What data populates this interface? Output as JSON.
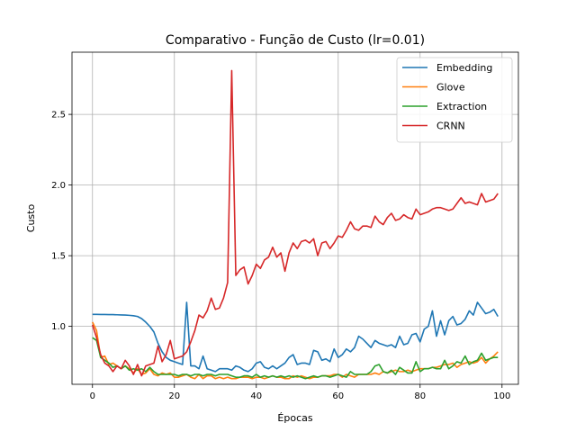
{
  "chart_data": {
    "type": "line",
    "title": "Comparativo - Função de Custo (lr=0.01)",
    "xlabel": "Épocas",
    "ylabel": "Custo",
    "xlim": [
      -5,
      104
    ],
    "ylim": [
      0.59,
      2.94
    ],
    "xticks": [
      0,
      20,
      40,
      60,
      80,
      100
    ],
    "xtick_labels": [
      "0",
      "20",
      "40",
      "60",
      "80",
      "100"
    ],
    "yticks": [
      1.0,
      1.5,
      2.0,
      2.5
    ],
    "ytick_labels": [
      "1.0",
      "1.5",
      "2.0",
      "2.5"
    ],
    "grid": true,
    "legend_position": "top-right",
    "x": [
      0,
      1,
      2,
      3,
      4,
      5,
      6,
      7,
      8,
      9,
      10,
      11,
      12,
      13,
      14,
      15,
      16,
      17,
      18,
      19,
      20,
      21,
      22,
      23,
      24,
      25,
      26,
      27,
      28,
      29,
      30,
      31,
      32,
      33,
      34,
      35,
      36,
      37,
      38,
      39,
      40,
      41,
      42,
      43,
      44,
      45,
      46,
      47,
      48,
      49,
      50,
      51,
      52,
      53,
      54,
      55,
      56,
      57,
      58,
      59,
      60,
      61,
      62,
      63,
      64,
      65,
      66,
      67,
      68,
      69,
      70,
      71,
      72,
      73,
      74,
      75,
      76,
      77,
      78,
      79,
      80,
      81,
      82,
      83,
      84,
      85,
      86,
      87,
      88,
      89,
      90,
      91,
      92,
      93,
      94,
      95,
      96,
      97,
      98,
      99
    ],
    "series": [
      {
        "name": "Embedding",
        "color": "#1f77b4",
        "values": [
          1.085,
          1.085,
          1.084,
          1.084,
          1.083,
          1.083,
          1.082,
          1.081,
          1.08,
          1.078,
          1.075,
          1.07,
          1.055,
          1.03,
          1.0,
          0.96,
          0.88,
          0.82,
          0.78,
          0.76,
          0.75,
          0.74,
          0.73,
          1.17,
          0.72,
          0.72,
          0.7,
          0.79,
          0.7,
          0.69,
          0.68,
          0.7,
          0.7,
          0.7,
          0.69,
          0.72,
          0.71,
          0.69,
          0.68,
          0.7,
          0.74,
          0.75,
          0.71,
          0.7,
          0.72,
          0.7,
          0.72,
          0.74,
          0.78,
          0.8,
          0.73,
          0.74,
          0.74,
          0.73,
          0.83,
          0.82,
          0.76,
          0.77,
          0.75,
          0.84,
          0.78,
          0.8,
          0.84,
          0.82,
          0.85,
          0.93,
          0.91,
          0.88,
          0.85,
          0.9,
          0.88,
          0.87,
          0.86,
          0.87,
          0.85,
          0.93,
          0.87,
          0.88,
          0.94,
          0.95,
          0.89,
          0.98,
          1.0,
          1.11,
          0.93,
          1.04,
          0.94,
          1.04,
          1.07,
          1.01,
          1.02,
          1.05,
          1.11,
          1.08,
          1.17,
          1.13,
          1.09,
          1.1,
          1.12,
          1.07
        ]
      },
      {
        "name": "Glove",
        "color": "#ff7f0e",
        "values": [
          1.03,
          0.97,
          0.78,
          0.79,
          0.73,
          0.74,
          0.72,
          0.7,
          0.72,
          0.7,
          0.67,
          0.7,
          0.66,
          0.67,
          0.7,
          0.66,
          0.65,
          0.67,
          0.66,
          0.67,
          0.64,
          0.64,
          0.65,
          0.66,
          0.64,
          0.63,
          0.66,
          0.63,
          0.65,
          0.65,
          0.63,
          0.64,
          0.63,
          0.64,
          0.63,
          0.63,
          0.64,
          0.64,
          0.64,
          0.63,
          0.64,
          0.64,
          0.63,
          0.64,
          0.65,
          0.64,
          0.64,
          0.63,
          0.63,
          0.65,
          0.64,
          0.65,
          0.64,
          0.63,
          0.64,
          0.64,
          0.65,
          0.65,
          0.65,
          0.66,
          0.66,
          0.64,
          0.66,
          0.65,
          0.64,
          0.66,
          0.66,
          0.66,
          0.66,
          0.67,
          0.66,
          0.68,
          0.67,
          0.68,
          0.69,
          0.68,
          0.68,
          0.69,
          0.68,
          0.69,
          0.7,
          0.7,
          0.7,
          0.71,
          0.71,
          0.72,
          0.73,
          0.73,
          0.74,
          0.71,
          0.73,
          0.74,
          0.75,
          0.74,
          0.75,
          0.78,
          0.74,
          0.77,
          0.79,
          0.82
        ]
      },
      {
        "name": "Extraction",
        "color": "#2ca02c",
        "values": [
          0.92,
          0.9,
          0.78,
          0.76,
          0.74,
          0.71,
          0.72,
          0.7,
          0.72,
          0.69,
          0.7,
          0.69,
          0.7,
          0.68,
          0.71,
          0.68,
          0.66,
          0.66,
          0.66,
          0.66,
          0.66,
          0.65,
          0.66,
          0.66,
          0.65,
          0.66,
          0.66,
          0.65,
          0.66,
          0.66,
          0.65,
          0.66,
          0.66,
          0.66,
          0.65,
          0.64,
          0.64,
          0.65,
          0.65,
          0.64,
          0.66,
          0.64,
          0.65,
          0.64,
          0.65,
          0.64,
          0.65,
          0.64,
          0.65,
          0.64,
          0.65,
          0.64,
          0.63,
          0.64,
          0.65,
          0.64,
          0.65,
          0.65,
          0.64,
          0.65,
          0.66,
          0.65,
          0.64,
          0.68,
          0.66,
          0.66,
          0.66,
          0.66,
          0.68,
          0.72,
          0.73,
          0.68,
          0.67,
          0.69,
          0.66,
          0.71,
          0.69,
          0.67,
          0.67,
          0.75,
          0.68,
          0.7,
          0.7,
          0.71,
          0.7,
          0.7,
          0.76,
          0.7,
          0.72,
          0.75,
          0.74,
          0.79,
          0.73,
          0.75,
          0.76,
          0.81,
          0.76,
          0.77,
          0.78,
          0.78
        ]
      },
      {
        "name": "CRNN",
        "color": "#d62728",
        "values": [
          1.01,
          0.92,
          0.8,
          0.74,
          0.72,
          0.68,
          0.72,
          0.7,
          0.76,
          0.72,
          0.66,
          0.73,
          0.65,
          0.72,
          0.73,
          0.74,
          0.86,
          0.75,
          0.8,
          0.9,
          0.77,
          0.78,
          0.79,
          0.82,
          0.89,
          0.97,
          1.08,
          1.06,
          1.11,
          1.2,
          1.12,
          1.13,
          1.2,
          1.31,
          2.81,
          1.36,
          1.4,
          1.42,
          1.3,
          1.36,
          1.44,
          1.41,
          1.47,
          1.49,
          1.56,
          1.49,
          1.52,
          1.39,
          1.52,
          1.59,
          1.55,
          1.6,
          1.61,
          1.59,
          1.62,
          1.5,
          1.59,
          1.6,
          1.55,
          1.59,
          1.64,
          1.63,
          1.68,
          1.74,
          1.69,
          1.68,
          1.71,
          1.71,
          1.7,
          1.78,
          1.74,
          1.72,
          1.77,
          1.8,
          1.75,
          1.76,
          1.79,
          1.77,
          1.76,
          1.83,
          1.79,
          1.8,
          1.81,
          1.83,
          1.84,
          1.84,
          1.83,
          1.82,
          1.83,
          1.87,
          1.91,
          1.87,
          1.88,
          1.87,
          1.86,
          1.94,
          1.88,
          1.89,
          1.9,
          1.94
        ]
      }
    ]
  }
}
